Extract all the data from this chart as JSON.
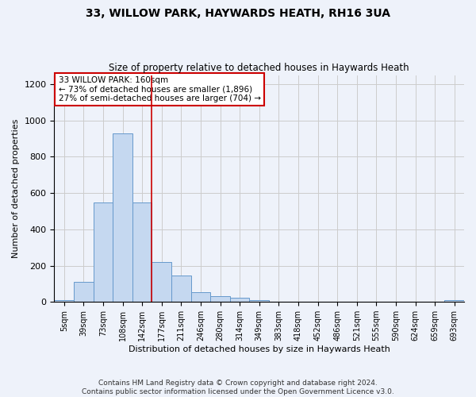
{
  "title_line1": "33, WILLOW PARK, HAYWARDS HEATH, RH16 3UA",
  "title_line2": "Size of property relative to detached houses in Haywards Heath",
  "xlabel": "Distribution of detached houses by size in Haywards Heath",
  "ylabel": "Number of detached properties",
  "footer_line1": "Contains HM Land Registry data © Crown copyright and database right 2024.",
  "footer_line2": "Contains public sector information licensed under the Open Government Licence v3.0.",
  "bar_labels": [
    "5sqm",
    "39sqm",
    "73sqm",
    "108sqm",
    "142sqm",
    "177sqm",
    "211sqm",
    "246sqm",
    "280sqm",
    "314sqm",
    "349sqm",
    "383sqm",
    "418sqm",
    "452sqm",
    "486sqm",
    "521sqm",
    "555sqm",
    "590sqm",
    "624sqm",
    "659sqm",
    "693sqm"
  ],
  "bar_values": [
    8,
    110,
    550,
    930,
    550,
    220,
    145,
    52,
    33,
    25,
    10,
    0,
    0,
    0,
    0,
    0,
    0,
    0,
    0,
    0,
    8
  ],
  "bar_color": "#c5d8f0",
  "bar_edge_color": "#6699cc",
  "vline_x": 4.5,
  "vline_color": "#cc0000",
  "annotation_text": "33 WILLOW PARK: 160sqm\n← 73% of detached houses are smaller (1,896)\n27% of semi-detached houses are larger (704) →",
  "annotation_box_color": "white",
  "annotation_box_edge_color": "#cc0000",
  "ylim": [
    0,
    1250
  ],
  "yticks": [
    0,
    200,
    400,
    600,
    800,
    1000,
    1200
  ],
  "grid_color": "#cccccc",
  "background_color": "#eef2fa"
}
